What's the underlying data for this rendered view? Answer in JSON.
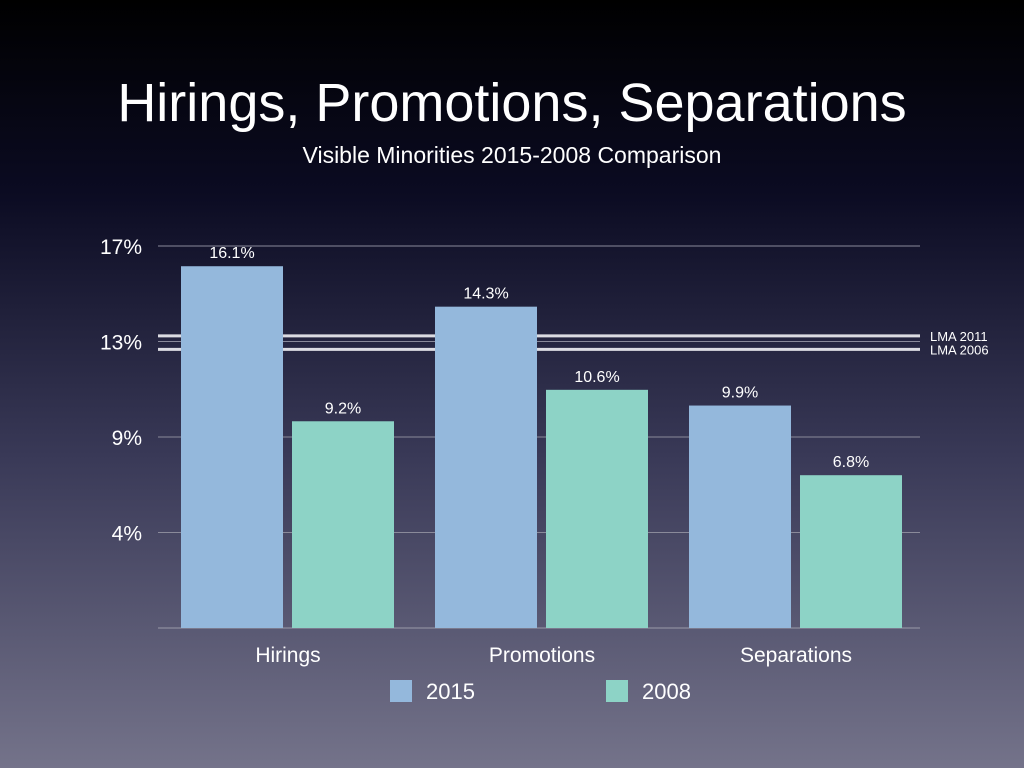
{
  "chart_data": {
    "type": "bar",
    "title": "Hirings, Promotions, Separations",
    "subtitle": "Visible Minorities 2015-2008 Comparison",
    "categories": [
      "Hirings",
      "Promotions",
      "Separations"
    ],
    "series": [
      {
        "name": "2015",
        "values": [
          16.1,
          14.3,
          9.9
        ],
        "labels": [
          "16.1%",
          "14.3%",
          "9.9%"
        ],
        "color": "#94b8dc"
      },
      {
        "name": "2008",
        "values": [
          9.2,
          10.6,
          6.8
        ],
        "labels": [
          "9.2%",
          "10.6%",
          "6.8%"
        ],
        "color": "#8dd3c6"
      }
    ],
    "yticks": [
      {
        "value": 4.25,
        "label": "4%"
      },
      {
        "value": 8.5,
        "label": "9%"
      },
      {
        "value": 12.75,
        "label": "13%"
      },
      {
        "value": 17,
        "label": "17%"
      }
    ],
    "ylim": [
      0,
      17
    ],
    "grid": true,
    "reference_lines": [
      {
        "label": "LMA 2011",
        "value": 13.0
      },
      {
        "label": "LMA 2006",
        "value": 12.4
      }
    ],
    "legend_placement": "bottom"
  }
}
